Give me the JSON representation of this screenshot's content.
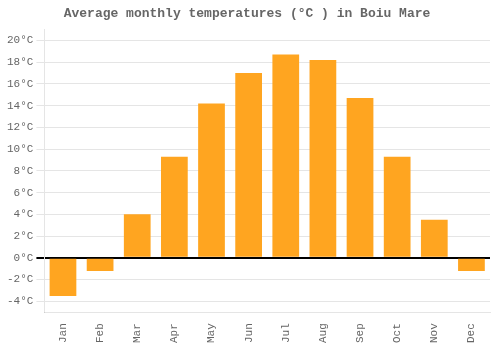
{
  "chart_data": {
    "type": "bar",
    "title": "Average monthly temperatures (°C ) in Boiu Mare",
    "categories": [
      "Jan",
      "Feb",
      "Mar",
      "Apr",
      "May",
      "Jun",
      "Jul",
      "Aug",
      "Sep",
      "Oct",
      "Nov",
      "Dec"
    ],
    "values": [
      -3.5,
      -1.2,
      4.0,
      9.3,
      14.2,
      17.0,
      18.7,
      18.2,
      14.7,
      9.3,
      3.5,
      -1.2
    ],
    "color": "#FFA520",
    "ylim": [
      -5.0,
      21.0
    ],
    "yticks": [
      {
        "value": -4,
        "label": "-4°C"
      },
      {
        "value": -2,
        "label": "-2°C"
      },
      {
        "value": 0,
        "label": "0°C"
      },
      {
        "value": 2,
        "label": "2°C"
      },
      {
        "value": 4,
        "label": "4°C"
      },
      {
        "value": 6,
        "label": "6°C"
      },
      {
        "value": 8,
        "label": "8°C"
      },
      {
        "value": 10,
        "label": "10°C"
      },
      {
        "value": 12,
        "label": "12°C"
      },
      {
        "value": 14,
        "label": "14°C"
      },
      {
        "value": 16,
        "label": "16°C"
      },
      {
        "value": 18,
        "label": "18°C"
      },
      {
        "value": 20,
        "label": "20°C"
      }
    ],
    "grid": true
  }
}
